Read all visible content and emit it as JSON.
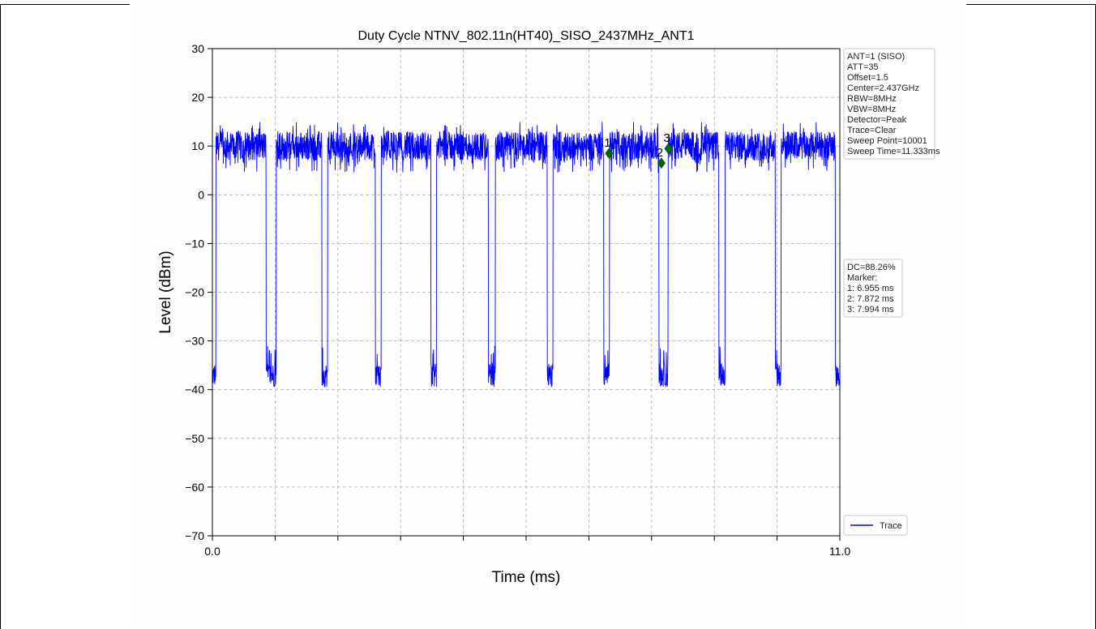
{
  "chart_data": {
    "type": "line",
    "title": "Duty Cycle NTNV_802.11n(HT40)_SISO_2437MHz_ANT1",
    "xlabel": "Time (ms)",
    "ylabel": "Level (dBm)",
    "xlim": [
      0.0,
      11.0
    ],
    "ylim": [
      -70,
      30
    ],
    "x_tick_labels": [
      "0.0",
      "11.0"
    ],
    "y_ticks": [
      30,
      20,
      10,
      0,
      -10,
      -20,
      -30,
      -40,
      -50,
      -60,
      -70
    ],
    "y_tick_labels": [
      "30",
      "20",
      "10",
      "0",
      "−10",
      "−20",
      "−30",
      "−40",
      "−50",
      "−60",
      "−70"
    ],
    "grid": true,
    "legend": {
      "placement": "bottom-right",
      "entries": [
        {
          "name": "Trace",
          "color": "#0000ff"
        }
      ]
    },
    "series": [
      {
        "name": "Trace",
        "color": "#0000ff",
        "on_level_dBm": 10,
        "off_level_dBm": -37,
        "gaps_ms": [
          [
            0.0,
            0.06
          ],
          [
            0.94,
            1.12
          ],
          [
            1.92,
            2.02
          ],
          [
            2.86,
            2.96
          ],
          [
            3.83,
            3.93
          ],
          [
            4.84,
            4.96
          ],
          [
            5.87,
            5.97
          ],
          [
            6.86,
            6.96
          ],
          [
            7.83,
            7.99
          ],
          [
            8.88,
            8.99
          ],
          [
            9.87,
            9.97
          ],
          [
            10.92,
            11.0
          ]
        ]
      }
    ],
    "markers": [
      {
        "label": "1",
        "x": 6.955,
        "y": 8.5,
        "color": "#006400"
      },
      {
        "label": "2",
        "x": 7.872,
        "y": 6.5,
        "color": "#006400"
      },
      {
        "label": "3",
        "x": 7.994,
        "y": 9.5,
        "color": "#006400"
      }
    ],
    "info_box": [
      "ANT=1 (SISO)",
      "ATT=35",
      "Offset=1.5",
      "Center=2.437GHz",
      "RBW=8MHz",
      "VBW=8MHz",
      "Detector=Peak",
      "Trace=Clear",
      "Sweep Point=10001",
      "Sweep Time=11.333ms"
    ],
    "marker_box": [
      "DC=88.26%",
      "Marker:",
      "1: 6.955 ms",
      "2: 7.872 ms",
      "3: 7.994 ms"
    ]
  }
}
